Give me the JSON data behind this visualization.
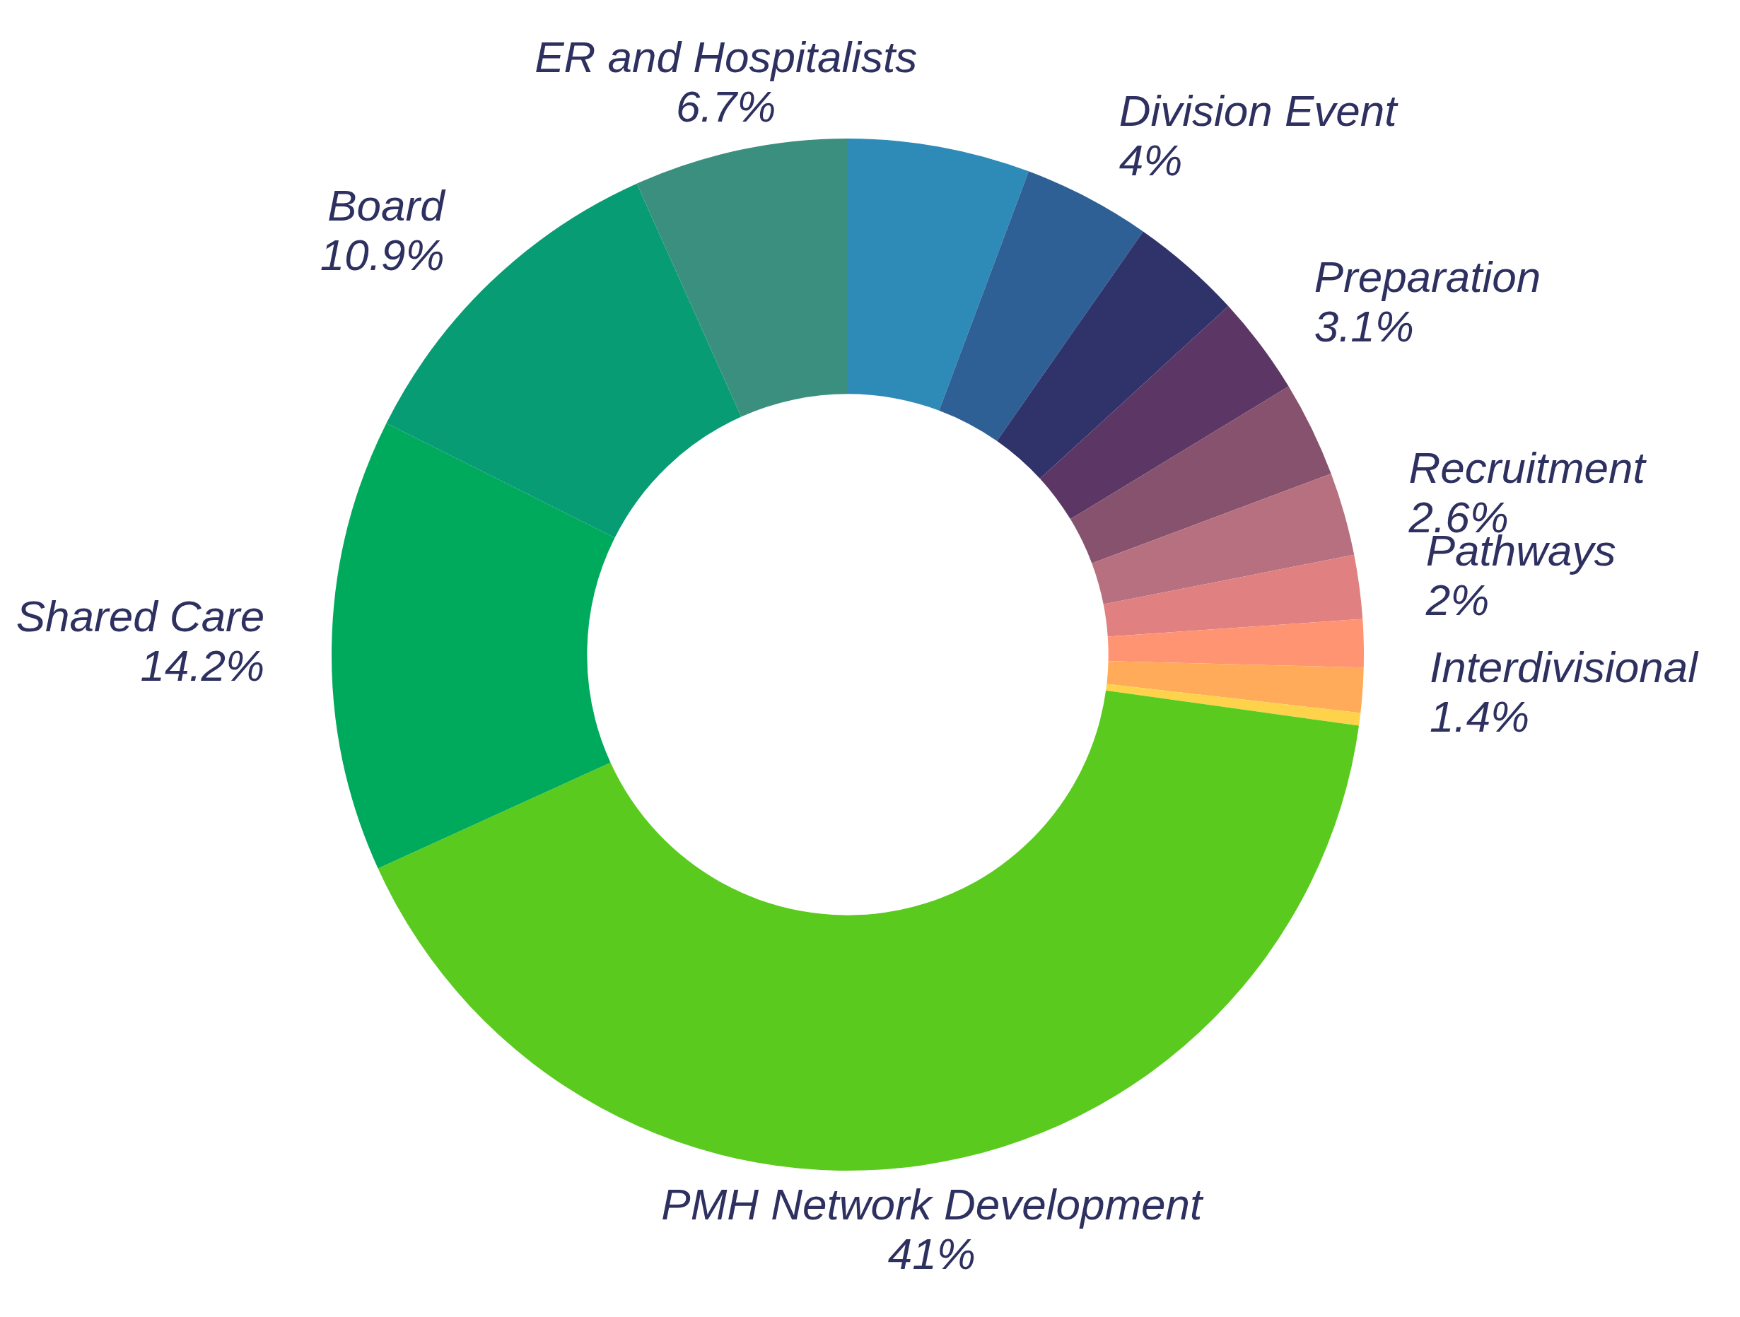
{
  "chart_data": {
    "type": "donut",
    "categories": [
      null,
      "Division Event",
      null,
      "Preparation",
      null,
      "Recruitment",
      "Pathways",
      null,
      "Interdivisional",
      null,
      "PMH Network Development",
      "Shared Care",
      "Board",
      "ER and Hospitalists"
    ],
    "values": [
      5.7,
      4,
      3.5,
      3.1,
      3.0,
      2.6,
      2,
      1.5,
      1.4,
      0.4,
      41,
      14.2,
      10.9,
      6.7
    ],
    "colors": [
      "#2e8bb8",
      "#2e6096",
      "#2f336a",
      "#5c3766",
      "#87526e",
      "#b7707f",
      "#e08080",
      "#ff9473",
      "#ffab5a",
      "#ffd24c",
      "#5acb1e",
      "#00aa5c",
      "#089c74",
      "#3b8f7e"
    ],
    "value_labels": [
      null,
      "4%",
      null,
      "3.1%",
      null,
      "2.6%",
      "2%",
      null,
      "1.4%",
      null,
      "41%",
      "14.2%",
      "10.9%",
      "6.7%"
    ]
  }
}
